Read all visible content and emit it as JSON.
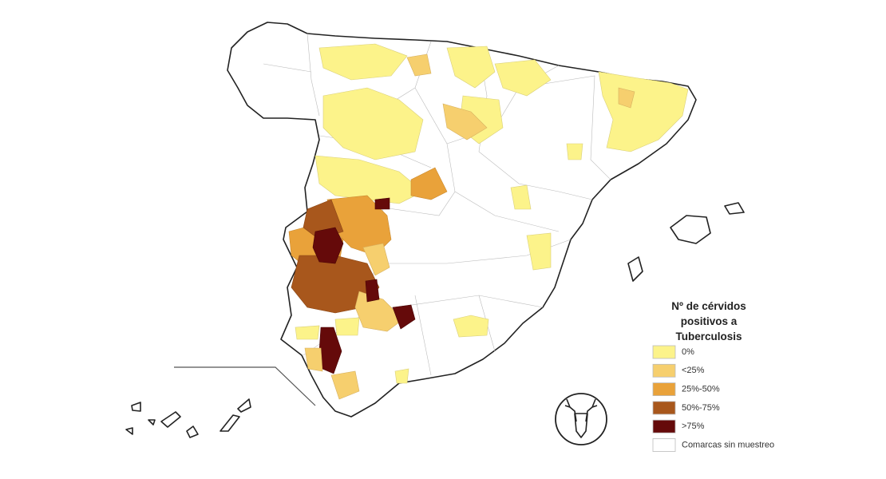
{
  "legend": {
    "title_lines": [
      "Nº de cérvidos",
      "positivos a",
      "Tuberculosis"
    ],
    "items": [
      {
        "label": "0%",
        "color": "#fcf38a"
      },
      {
        "label": "<25%",
        "color": "#f6cf6e"
      },
      {
        "label": "25%-50%",
        "color": "#e9a23a"
      },
      {
        "label": "50%-75%",
        "color": "#a8571c"
      },
      {
        "label": ">75%",
        "color": "#650a0a"
      },
      {
        "label": "Comarcas sin muestreo",
        "color": "#ffffff"
      }
    ]
  }
}
